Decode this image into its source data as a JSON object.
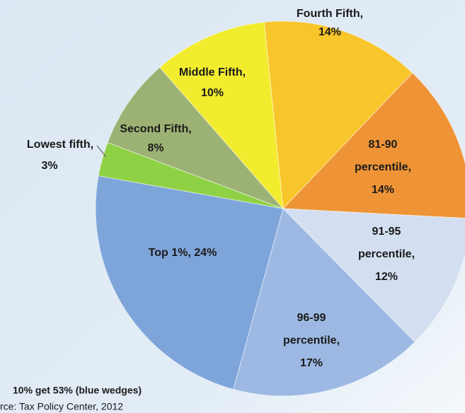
{
  "chart_data": {
    "type": "pie",
    "labels": [
      [
        "Fourth Fifth,"
      ],
      [
        "81-90",
        "percentile,"
      ],
      [
        "91-95",
        "percentile,"
      ],
      [
        "96-99",
        "percentile,"
      ],
      [
        "Top 1%,"
      ],
      [
        "Lowest fifth,"
      ],
      [
        "Second Fifth,"
      ],
      [
        "Middle Fifth,"
      ]
    ],
    "values": [
      14,
      14,
      12,
      17,
      24,
      3,
      8,
      10
    ],
    "value_labels": [
      "14%",
      "14%",
      "12%",
      "17%",
      "24%",
      "3%",
      "8%",
      "10%"
    ],
    "colors": [
      "#f8c52a",
      "#ee9436",
      "#d3dff1",
      "#9db9e3",
      "#7ea5da",
      "#8fd145",
      "#9cb274",
      "#f2ec2e"
    ],
    "annotations": [
      "10% get 53% (blue wedges)",
      "rce: Tax Policy Center, 2012"
    ]
  }
}
